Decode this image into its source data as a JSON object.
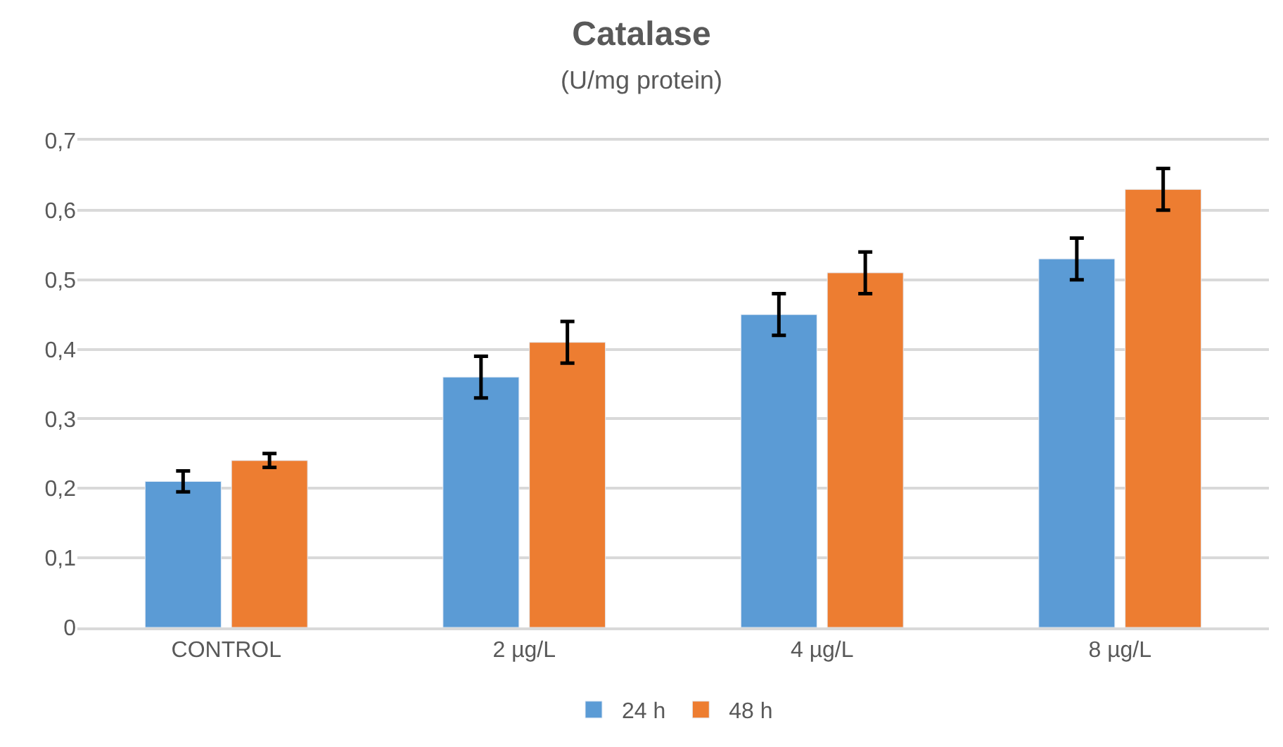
{
  "chart_data": {
    "type": "bar",
    "title": "Catalase",
    "subtitle": "(U/mg protein)",
    "categories": [
      "CONTROL",
      "2 µg/L",
      "4 µg/L",
      "8 µg/L"
    ],
    "series": [
      {
        "name": "24 h",
        "color": "#5b9bd5",
        "values": [
          0.21,
          0.36,
          0.45,
          0.53
        ],
        "errors": [
          0.015,
          0.03,
          0.03,
          0.03
        ]
      },
      {
        "name": "48 h",
        "color": "#ed7d31",
        "values": [
          0.24,
          0.41,
          0.51,
          0.63
        ],
        "errors": [
          0.01,
          0.03,
          0.03,
          0.03
        ]
      }
    ],
    "ylim": [
      0,
      0.7
    ],
    "yticks": [
      0,
      {
        "value": 0.1,
        "label": "0,1"
      },
      {
        "value": 0.2,
        "label": "0,2"
      },
      {
        "value": 0.3,
        "label": "0,3"
      },
      {
        "value": 0.4,
        "label": "0,4"
      },
      {
        "value": 0.5,
        "label": "0,5"
      },
      {
        "value": 0.6,
        "label": "0,6"
      },
      {
        "value": 0.7,
        "label": "0,7"
      }
    ],
    "grid": "y",
    "legend": "bottom"
  }
}
